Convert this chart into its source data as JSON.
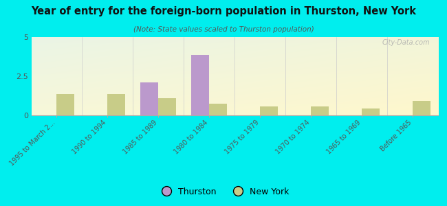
{
  "title": "Year of entry for the foreign-born population in Thurston, New York",
  "subtitle": "(Note: State values scaled to Thurston population)",
  "categories": [
    "1995 to March 2...",
    "1990 to 1994",
    "1985 to 1989",
    "1980 to 1984",
    "1975 to 1979",
    "1970 to 1974",
    "1965 to 1969",
    "Before 1965"
  ],
  "thurston_values": [
    0,
    0,
    2.1,
    3.85,
    0,
    0,
    0,
    0
  ],
  "newyork_values": [
    1.35,
    1.35,
    1.1,
    0.75,
    0.55,
    0.55,
    0.45,
    0.9
  ],
  "thurston_color": "#bb99cc",
  "newyork_color": "#c8cc88",
  "background_color": "#00eeee",
  "ylim": [
    0,
    5
  ],
  "yticks": [
    0,
    2.5,
    5
  ],
  "bar_width": 0.35,
  "watermark": "City-Data.com",
  "legend_thurston": "Thurston",
  "legend_newyork": "New York",
  "title_color": "#111111",
  "subtitle_color": "#555555",
  "tick_label_color": "#555555"
}
